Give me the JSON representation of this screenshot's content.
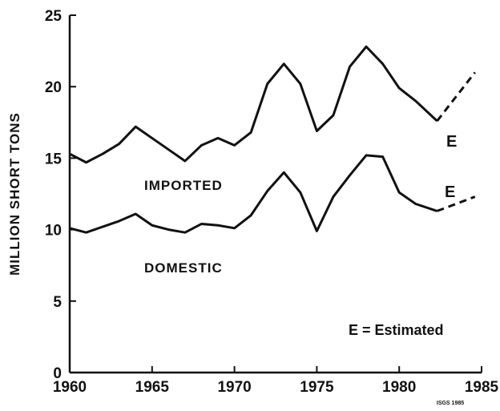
{
  "chart_data": {
    "type": "stacked-line",
    "y_label": "MILLION SHORT TONS",
    "x": [
      1960,
      1961,
      1962,
      1963,
      1964,
      1965,
      1966,
      1967,
      1968,
      1969,
      1970,
      1971,
      1972,
      1973,
      1974,
      1975,
      1976,
      1977,
      1978,
      1979,
      1980,
      1981,
      1982.3,
      1984.6
    ],
    "series": [
      {
        "name": "DOMESTIC",
        "color": "#111111",
        "values": [
          10.1,
          9.8,
          10.2,
          10.6,
          11.1,
          10.3,
          10.0,
          9.8,
          10.4,
          10.3,
          10.1,
          11.0,
          12.7,
          14.0,
          12.6,
          9.9,
          12.3,
          13.8,
          15.2,
          15.1,
          12.6,
          11.8,
          11.3,
          12.3
        ]
      },
      {
        "name": "IMPORTED",
        "color": "#111111",
        "values": [
          5.2,
          4.9,
          5.1,
          5.4,
          6.1,
          6.1,
          5.6,
          5.0,
          5.5,
          6.1,
          5.8,
          5.8,
          7.5,
          7.6,
          7.6,
          7.0,
          5.7,
          7.6,
          7.6,
          6.5,
          7.3,
          7.2,
          6.3,
          8.7
        ]
      }
    ],
    "dashed_last_segment": true,
    "annotations": [
      "E",
      "E",
      "E = Estimated",
      "ISGS 1985"
    ],
    "xlim": [
      1960,
      1985
    ],
    "xticks": [
      1960,
      1965,
      1970,
      1975,
      1980,
      1985
    ],
    "ylim": [
      0,
      25
    ],
    "yticks": [
      0,
      5,
      10,
      15,
      20,
      25
    ]
  }
}
